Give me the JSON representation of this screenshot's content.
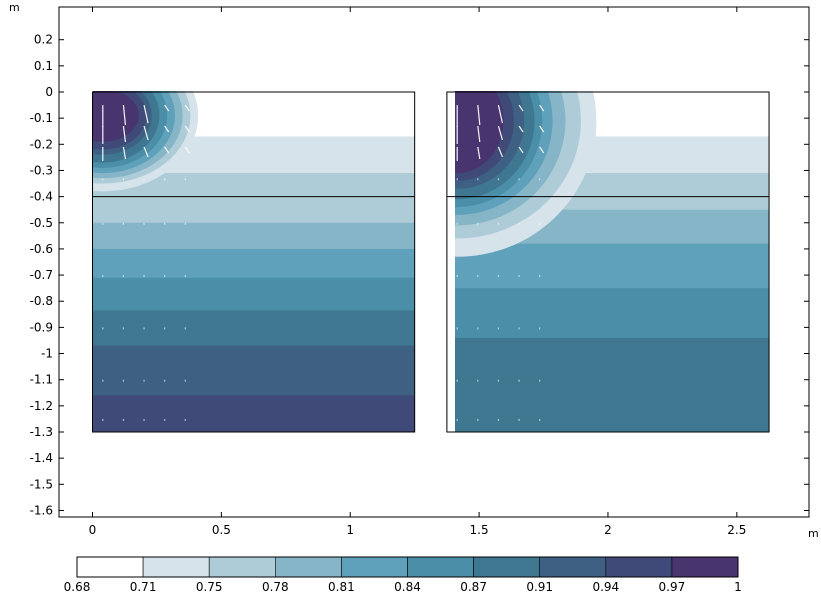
{
  "chart_data": {
    "type": "heatmap",
    "title": "",
    "x_unit": "m",
    "y_unit": "m",
    "xlim": [
      -0.13,
      2.78
    ],
    "ylim": [
      -1.625,
      0.325
    ],
    "x_ticks": [
      0,
      0.5,
      1,
      1.5,
      2,
      2.5
    ],
    "x_tick_labels": [
      "0",
      "0.5",
      "1",
      "1.5",
      "2",
      "2.5"
    ],
    "y_ticks": [
      0.2,
      0.1,
      0,
      -0.1,
      -0.2,
      -0.3,
      -0.4,
      -0.5,
      -0.6,
      -0.7,
      -0.8,
      -0.9,
      -1,
      -1.1,
      -1.2,
      -1.3,
      -1.4,
      -1.5,
      -1.6
    ],
    "y_tick_labels": [
      "0.2",
      "0.1",
      "0",
      "-0.1",
      "-0.2",
      "-0.3",
      "-0.4",
      "-0.5",
      "-0.6",
      "-0.7",
      "-0.8",
      "-0.9",
      "-1",
      "-1.1",
      "-1.2",
      "-1.3",
      "-1.4",
      "-1.5",
      "-1.6"
    ],
    "domains": [
      {
        "name": "left",
        "x_range": [
          0,
          1.25
        ],
        "y_range": [
          -1.3,
          0
        ],
        "layer_boundary_y": -0.4,
        "bands": [
          {
            "y_top": 0,
            "y_bottom": -0.17,
            "value": 0.68
          },
          {
            "y_top": -0.17,
            "y_bottom": -0.31,
            "value": 0.71
          },
          {
            "y_top": -0.31,
            "y_bottom": -0.4,
            "value": 0.75
          },
          {
            "y_top": -0.4,
            "y_bottom": -0.5,
            "value": 0.75
          },
          {
            "y_top": -0.5,
            "y_bottom": -0.6,
            "value": 0.78
          },
          {
            "y_top": -0.6,
            "y_bottom": -0.71,
            "value": 0.81
          },
          {
            "y_top": -0.71,
            "y_bottom": -0.835,
            "value": 0.84
          },
          {
            "y_top": -0.835,
            "y_bottom": -0.97,
            "value": 0.87
          },
          {
            "y_top": -0.97,
            "y_bottom": -1.16,
            "value": 0.91
          },
          {
            "y_top": -1.16,
            "y_bottom": -1.3,
            "value": 0.94
          }
        ],
        "source": {
          "x": 0.04,
          "y": -0.09,
          "levels": [
            {
              "rx": 0.37,
              "ry": 0.29,
              "value": 0.71
            },
            {
              "rx": 0.34,
              "ry": 0.26,
              "value": 0.75
            },
            {
              "rx": 0.31,
              "ry": 0.24,
              "value": 0.78
            },
            {
              "rx": 0.28,
              "ry": 0.22,
              "value": 0.81
            },
            {
              "rx": 0.25,
              "ry": 0.2,
              "value": 0.84
            },
            {
              "rx": 0.22,
              "ry": 0.18,
              "value": 0.87
            },
            {
              "rx": 0.19,
              "ry": 0.15,
              "value": 0.91
            },
            {
              "rx": 0.17,
              "ry": 0.13,
              "value": 0.94
            },
            {
              "rx": 0.14,
              "ry": 0.1,
              "value": 0.97
            }
          ]
        }
      },
      {
        "name": "right",
        "x_range": [
          1.375,
          2.625
        ],
        "y_range": [
          -1.3,
          0
        ],
        "layer_boundary_y": -0.4,
        "bands": [
          {
            "y_top": 0,
            "y_bottom": -0.17,
            "value": 0.68
          },
          {
            "y_top": -0.17,
            "y_bottom": -0.31,
            "value": 0.71
          },
          {
            "y_top": -0.31,
            "y_bottom": -0.45,
            "value": 0.75
          },
          {
            "y_top": -0.45,
            "y_bottom": -0.58,
            "value": 0.78
          },
          {
            "y_top": -0.58,
            "y_bottom": -0.75,
            "value": 0.81
          },
          {
            "y_top": -0.75,
            "y_bottom": -0.94,
            "value": 0.84
          },
          {
            "y_top": -0.94,
            "y_bottom": -1.3,
            "value": 0.87
          }
        ],
        "source": {
          "x": 1.415,
          "y": -0.11,
          "levels": [
            {
              "rx": 0.54,
              "ry": 0.52,
              "value": 0.71
            },
            {
              "rx": 0.48,
              "ry": 0.45,
              "value": 0.75
            },
            {
              "rx": 0.42,
              "ry": 0.4,
              "value": 0.78
            },
            {
              "rx": 0.37,
              "ry": 0.36,
              "value": 0.81
            },
            {
              "rx": 0.33,
              "ry": 0.33,
              "value": 0.84
            },
            {
              "rx": 0.3,
              "ry": 0.3,
              "value": 0.87
            },
            {
              "rx": 0.26,
              "ry": 0.26,
              "value": 0.91
            },
            {
              "rx": 0.22,
              "ry": 0.23,
              "value": 0.94
            },
            {
              "rx": 0.18,
              "ry": 0.2,
              "value": 0.97
            }
          ]
        }
      }
    ],
    "colorbar": {
      "labels": [
        "0.68",
        "0.71",
        "0.75",
        "0.78",
        "0.81",
        "0.84",
        "0.87",
        "0.91",
        "0.94",
        "0.97",
        "1"
      ],
      "colors": [
        "#ffffff",
        "#d6e3ea",
        "#aeccd7",
        "#86b5c7",
        "#5fa1ba",
        "#4a8fa7",
        "#3f7791",
        "#3e6083",
        "#3f4a79",
        "#48346e"
      ]
    },
    "arrow_color": "#ffffff"
  }
}
